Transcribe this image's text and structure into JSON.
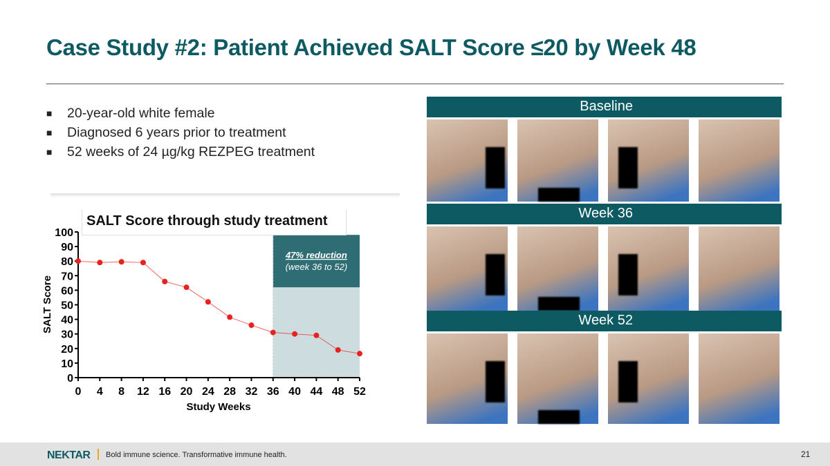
{
  "title": "Case Study #2: Patient Achieved SALT Score ≤20 by Week 48",
  "bullets": [
    "20-year-old white female",
    "Diagnosed 6 years prior to treatment",
    "52 weeks of 24 µg/kg REZPEG treatment"
  ],
  "bullet_icon": "square-bullet",
  "photos": {
    "headers": [
      "Baseline",
      "Week 36",
      "Week 52"
    ]
  },
  "footer": {
    "logo": "NEKTAR",
    "tagline": "Bold immune science. Transformative immune health.",
    "page": "21"
  },
  "chart_data": {
    "type": "line",
    "title": "SALT Score through study treatment",
    "xlabel": "Study Weeks",
    "ylabel": "SALT Score",
    "x": [
      0,
      4,
      8,
      12,
      16,
      20,
      24,
      28,
      32,
      36,
      40,
      44,
      48,
      52
    ],
    "y": [
      80,
      79,
      79.5,
      79,
      66,
      62,
      52,
      41.5,
      36,
      31,
      30,
      29,
      19,
      16.5
    ],
    "xlim": [
      0,
      52
    ],
    "ylim": [
      0,
      100
    ],
    "yticks": [
      0,
      10,
      20,
      30,
      40,
      50,
      60,
      70,
      80,
      90,
      100
    ],
    "xticks": [
      0,
      4,
      8,
      12,
      16,
      20,
      24,
      28,
      32,
      36,
      40,
      44,
      48,
      52
    ],
    "highlight": {
      "from": 36,
      "to": 52,
      "label": "47% reduction",
      "sublabel": "(week 36 to 52)"
    },
    "line_color": "#e8231f"
  }
}
